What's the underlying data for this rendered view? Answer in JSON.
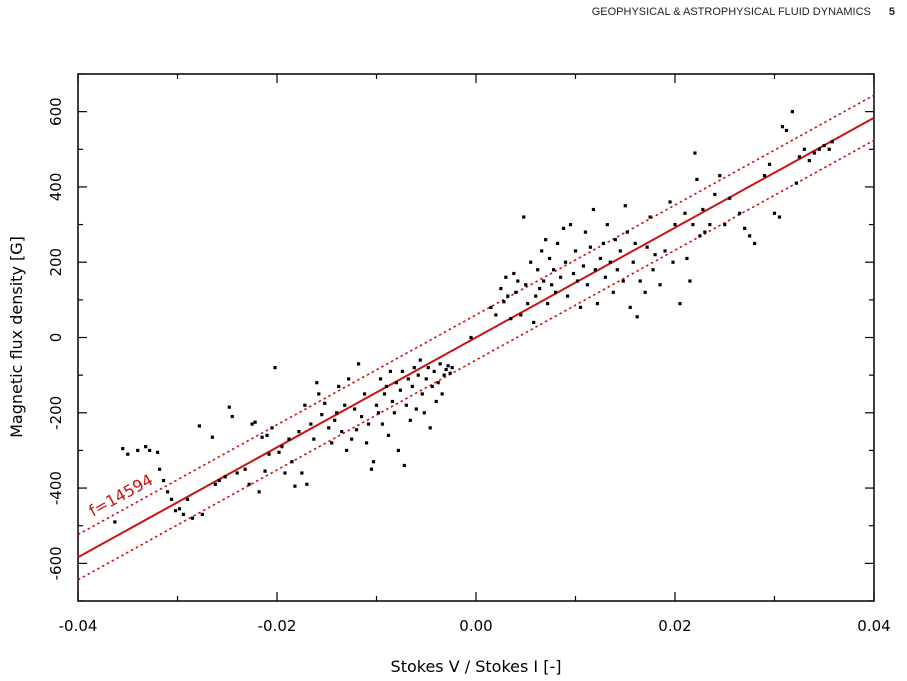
{
  "header": {
    "journal": "GEOPHYSICAL & ASTROPHYSICAL FLUID DYNAMICS",
    "page": "5"
  },
  "colors": {
    "fit": "#cc1111",
    "points": "#000000",
    "axes": "#000000"
  },
  "chart_data": {
    "type": "scatter",
    "title": "",
    "xlabel": "Stokes V / Stokes I [-]",
    "ylabel": "Magnetic flux density [G]",
    "xlim": [
      -0.04,
      0.04
    ],
    "ylim": [
      -700,
      700
    ],
    "xticks": [
      -0.04,
      -0.02,
      0.0,
      0.02,
      0.04
    ],
    "xtick_labels": [
      "-0.04",
      "-0.02",
      "0.00",
      "0.02",
      "0.04"
    ],
    "yticks": [
      -600,
      -400,
      -200,
      0,
      200,
      400,
      600
    ],
    "ytick_labels": [
      "-600",
      "-400",
      "-200",
      "0",
      "200",
      "400",
      "600"
    ],
    "grid": false,
    "fit": {
      "slope": 14594,
      "offset": 60,
      "label": "f=14594"
    },
    "points": [
      [
        -0.0363,
        -490
      ],
      [
        -0.0355,
        -295
      ],
      [
        -0.035,
        -310
      ],
      [
        -0.034,
        -300
      ],
      [
        -0.0332,
        -290
      ],
      [
        -0.0328,
        -300
      ],
      [
        -0.032,
        -305
      ],
      [
        -0.0318,
        -350
      ],
      [
        -0.0314,
        -380
      ],
      [
        -0.031,
        -410
      ],
      [
        -0.0306,
        -430
      ],
      [
        -0.0302,
        -460
      ],
      [
        -0.0298,
        -455
      ],
      [
        -0.0294,
        -470
      ],
      [
        -0.029,
        -430
      ],
      [
        -0.0285,
        -480
      ],
      [
        -0.0278,
        -235
      ],
      [
        -0.0275,
        -470
      ],
      [
        -0.0265,
        -265
      ],
      [
        -0.0262,
        -390
      ],
      [
        -0.0258,
        -380
      ],
      [
        -0.0252,
        -370
      ],
      [
        -0.0248,
        -185
      ],
      [
        -0.0245,
        -210
      ],
      [
        -0.024,
        -360
      ],
      [
        -0.0232,
        -350
      ],
      [
        -0.0228,
        -390
      ],
      [
        -0.0225,
        -230
      ],
      [
        -0.0222,
        -225
      ],
      [
        -0.0218,
        -410
      ],
      [
        -0.0215,
        -265
      ],
      [
        -0.0212,
        -355
      ],
      [
        -0.021,
        -260
      ],
      [
        -0.0208,
        -310
      ],
      [
        -0.0205,
        -240
      ],
      [
        -0.0202,
        -80
      ],
      [
        -0.0198,
        -305
      ],
      [
        -0.0195,
        -290
      ],
      [
        -0.0192,
        -360
      ],
      [
        -0.0188,
        -270
      ],
      [
        -0.0185,
        -330
      ],
      [
        -0.0182,
        -395
      ],
      [
        -0.0178,
        -250
      ],
      [
        -0.0175,
        -360
      ],
      [
        -0.0172,
        -180
      ],
      [
        -0.017,
        -390
      ],
      [
        -0.0166,
        -230
      ],
      [
        -0.0163,
        -270
      ],
      [
        -0.016,
        -120
      ],
      [
        -0.0158,
        -150
      ],
      [
        -0.0155,
        -205
      ],
      [
        -0.0152,
        -175
      ],
      [
        -0.0148,
        -240
      ],
      [
        -0.0145,
        -280
      ],
      [
        -0.0142,
        -220
      ],
      [
        -0.014,
        -200
      ],
      [
        -0.0138,
        -130
      ],
      [
        -0.0135,
        -250
      ],
      [
        -0.0132,
        -180
      ],
      [
        -0.013,
        -300
      ],
      [
        -0.0128,
        -110
      ],
      [
        -0.0125,
        -270
      ],
      [
        -0.0122,
        -190
      ],
      [
        -0.012,
        -245
      ],
      [
        -0.0118,
        -70
      ],
      [
        -0.0115,
        -210
      ],
      [
        -0.0112,
        -150
      ],
      [
        -0.011,
        -280
      ],
      [
        -0.0108,
        -230
      ],
      [
        -0.0105,
        -350
      ],
      [
        -0.0103,
        -330
      ],
      [
        -0.01,
        -180
      ],
      [
        -0.0098,
        -200
      ],
      [
        -0.0096,
        -110
      ],
      [
        -0.0094,
        -230
      ],
      [
        -0.0092,
        -150
      ],
      [
        -0.009,
        -130
      ],
      [
        -0.0088,
        -260
      ],
      [
        -0.0086,
        -90
      ],
      [
        -0.0084,
        -170
      ],
      [
        -0.0082,
        -200
      ],
      [
        -0.008,
        -120
      ],
      [
        -0.0078,
        -300
      ],
      [
        -0.0076,
        -140
      ],
      [
        -0.0074,
        -90
      ],
      [
        -0.0072,
        -340
      ],
      [
        -0.007,
        -180
      ],
      [
        -0.0068,
        -110
      ],
      [
        -0.0066,
        -220
      ],
      [
        -0.0064,
        -130
      ],
      [
        -0.0062,
        -80
      ],
      [
        -0.006,
        -190
      ],
      [
        -0.0058,
        -100
      ],
      [
        -0.0056,
        -60
      ],
      [
        -0.0054,
        -150
      ],
      [
        -0.0052,
        -200
      ],
      [
        -0.005,
        -110
      ],
      [
        -0.0048,
        -80
      ],
      [
        -0.0046,
        -240
      ],
      [
        -0.0044,
        -130
      ],
      [
        -0.0042,
        -90
      ],
      [
        -0.004,
        -170
      ],
      [
        -0.0038,
        -120
      ],
      [
        -0.0036,
        -70
      ],
      [
        -0.0034,
        -150
      ],
      [
        -0.0032,
        -100
      ],
      [
        -0.003,
        -85
      ],
      [
        -0.0028,
        -75
      ],
      [
        -0.0026,
        -95
      ],
      [
        -0.0024,
        -80
      ],
      [
        -0.0005,
        0
      ],
      [
        0.0015,
        80
      ],
      [
        0.002,
        60
      ],
      [
        0.0025,
        130
      ],
      [
        0.0028,
        95
      ],
      [
        0.003,
        160
      ],
      [
        0.0032,
        110
      ],
      [
        0.0035,
        50
      ],
      [
        0.0038,
        170
      ],
      [
        0.004,
        120
      ],
      [
        0.0042,
        150
      ],
      [
        0.0045,
        60
      ],
      [
        0.0048,
        320
      ],
      [
        0.005,
        140
      ],
      [
        0.0052,
        90
      ],
      [
        0.0055,
        200
      ],
      [
        0.0058,
        40
      ],
      [
        0.006,
        110
      ],
      [
        0.0062,
        180
      ],
      [
        0.0064,
        130
      ],
      [
        0.0066,
        230
      ],
      [
        0.0068,
        150
      ],
      [
        0.007,
        260
      ],
      [
        0.0072,
        90
      ],
      [
        0.0074,
        210
      ],
      [
        0.0076,
        140
      ],
      [
        0.0078,
        180
      ],
      [
        0.008,
        120
      ],
      [
        0.0082,
        250
      ],
      [
        0.0085,
        160
      ],
      [
        0.0088,
        290
      ],
      [
        0.009,
        200
      ],
      [
        0.0092,
        110
      ],
      [
        0.0095,
        300
      ],
      [
        0.0098,
        170
      ],
      [
        0.01,
        230
      ],
      [
        0.0102,
        150
      ],
      [
        0.0105,
        80
      ],
      [
        0.0108,
        190
      ],
      [
        0.011,
        280
      ],
      [
        0.0112,
        140
      ],
      [
        0.0115,
        240
      ],
      [
        0.0118,
        340
      ],
      [
        0.012,
        180
      ],
      [
        0.0122,
        90
      ],
      [
        0.0125,
        210
      ],
      [
        0.0128,
        250
      ],
      [
        0.013,
        160
      ],
      [
        0.0132,
        300
      ],
      [
        0.0135,
        200
      ],
      [
        0.0138,
        120
      ],
      [
        0.014,
        260
      ],
      [
        0.0142,
        180
      ],
      [
        0.0145,
        230
      ],
      [
        0.0148,
        150
      ],
      [
        0.015,
        350
      ],
      [
        0.0152,
        280
      ],
      [
        0.0155,
        80
      ],
      [
        0.0158,
        200
      ],
      [
        0.016,
        250
      ],
      [
        0.0162,
        55
      ],
      [
        0.0165,
        150
      ],
      [
        0.017,
        120
      ],
      [
        0.0172,
        240
      ],
      [
        0.0175,
        320
      ],
      [
        0.0178,
        180
      ],
      [
        0.018,
        220
      ],
      [
        0.0185,
        140
      ],
      [
        0.019,
        230
      ],
      [
        0.0195,
        360
      ],
      [
        0.0198,
        200
      ],
      [
        0.02,
        300
      ],
      [
        0.0205,
        90
      ],
      [
        0.021,
        330
      ],
      [
        0.0212,
        210
      ],
      [
        0.0215,
        150
      ],
      [
        0.0218,
        300
      ],
      [
        0.022,
        490
      ],
      [
        0.0222,
        420
      ],
      [
        0.0225,
        270
      ],
      [
        0.0228,
        340
      ],
      [
        0.023,
        280
      ],
      [
        0.0235,
        300
      ],
      [
        0.024,
        380
      ],
      [
        0.0245,
        430
      ],
      [
        0.025,
        300
      ],
      [
        0.0255,
        370
      ],
      [
        0.0265,
        330
      ],
      [
        0.027,
        290
      ],
      [
        0.0275,
        270
      ],
      [
        0.028,
        250
      ],
      [
        0.029,
        430
      ],
      [
        0.0295,
        460
      ],
      [
        0.03,
        330
      ],
      [
        0.0305,
        320
      ],
      [
        0.0308,
        560
      ],
      [
        0.0312,
        550
      ],
      [
        0.0318,
        600
      ],
      [
        0.0322,
        410
      ],
      [
        0.0325,
        480
      ],
      [
        0.033,
        500
      ],
      [
        0.0335,
        470
      ],
      [
        0.034,
        490
      ],
      [
        0.0345,
        500
      ],
      [
        0.035,
        510
      ],
      [
        0.0355,
        500
      ],
      [
        0.0358,
        520
      ]
    ]
  }
}
